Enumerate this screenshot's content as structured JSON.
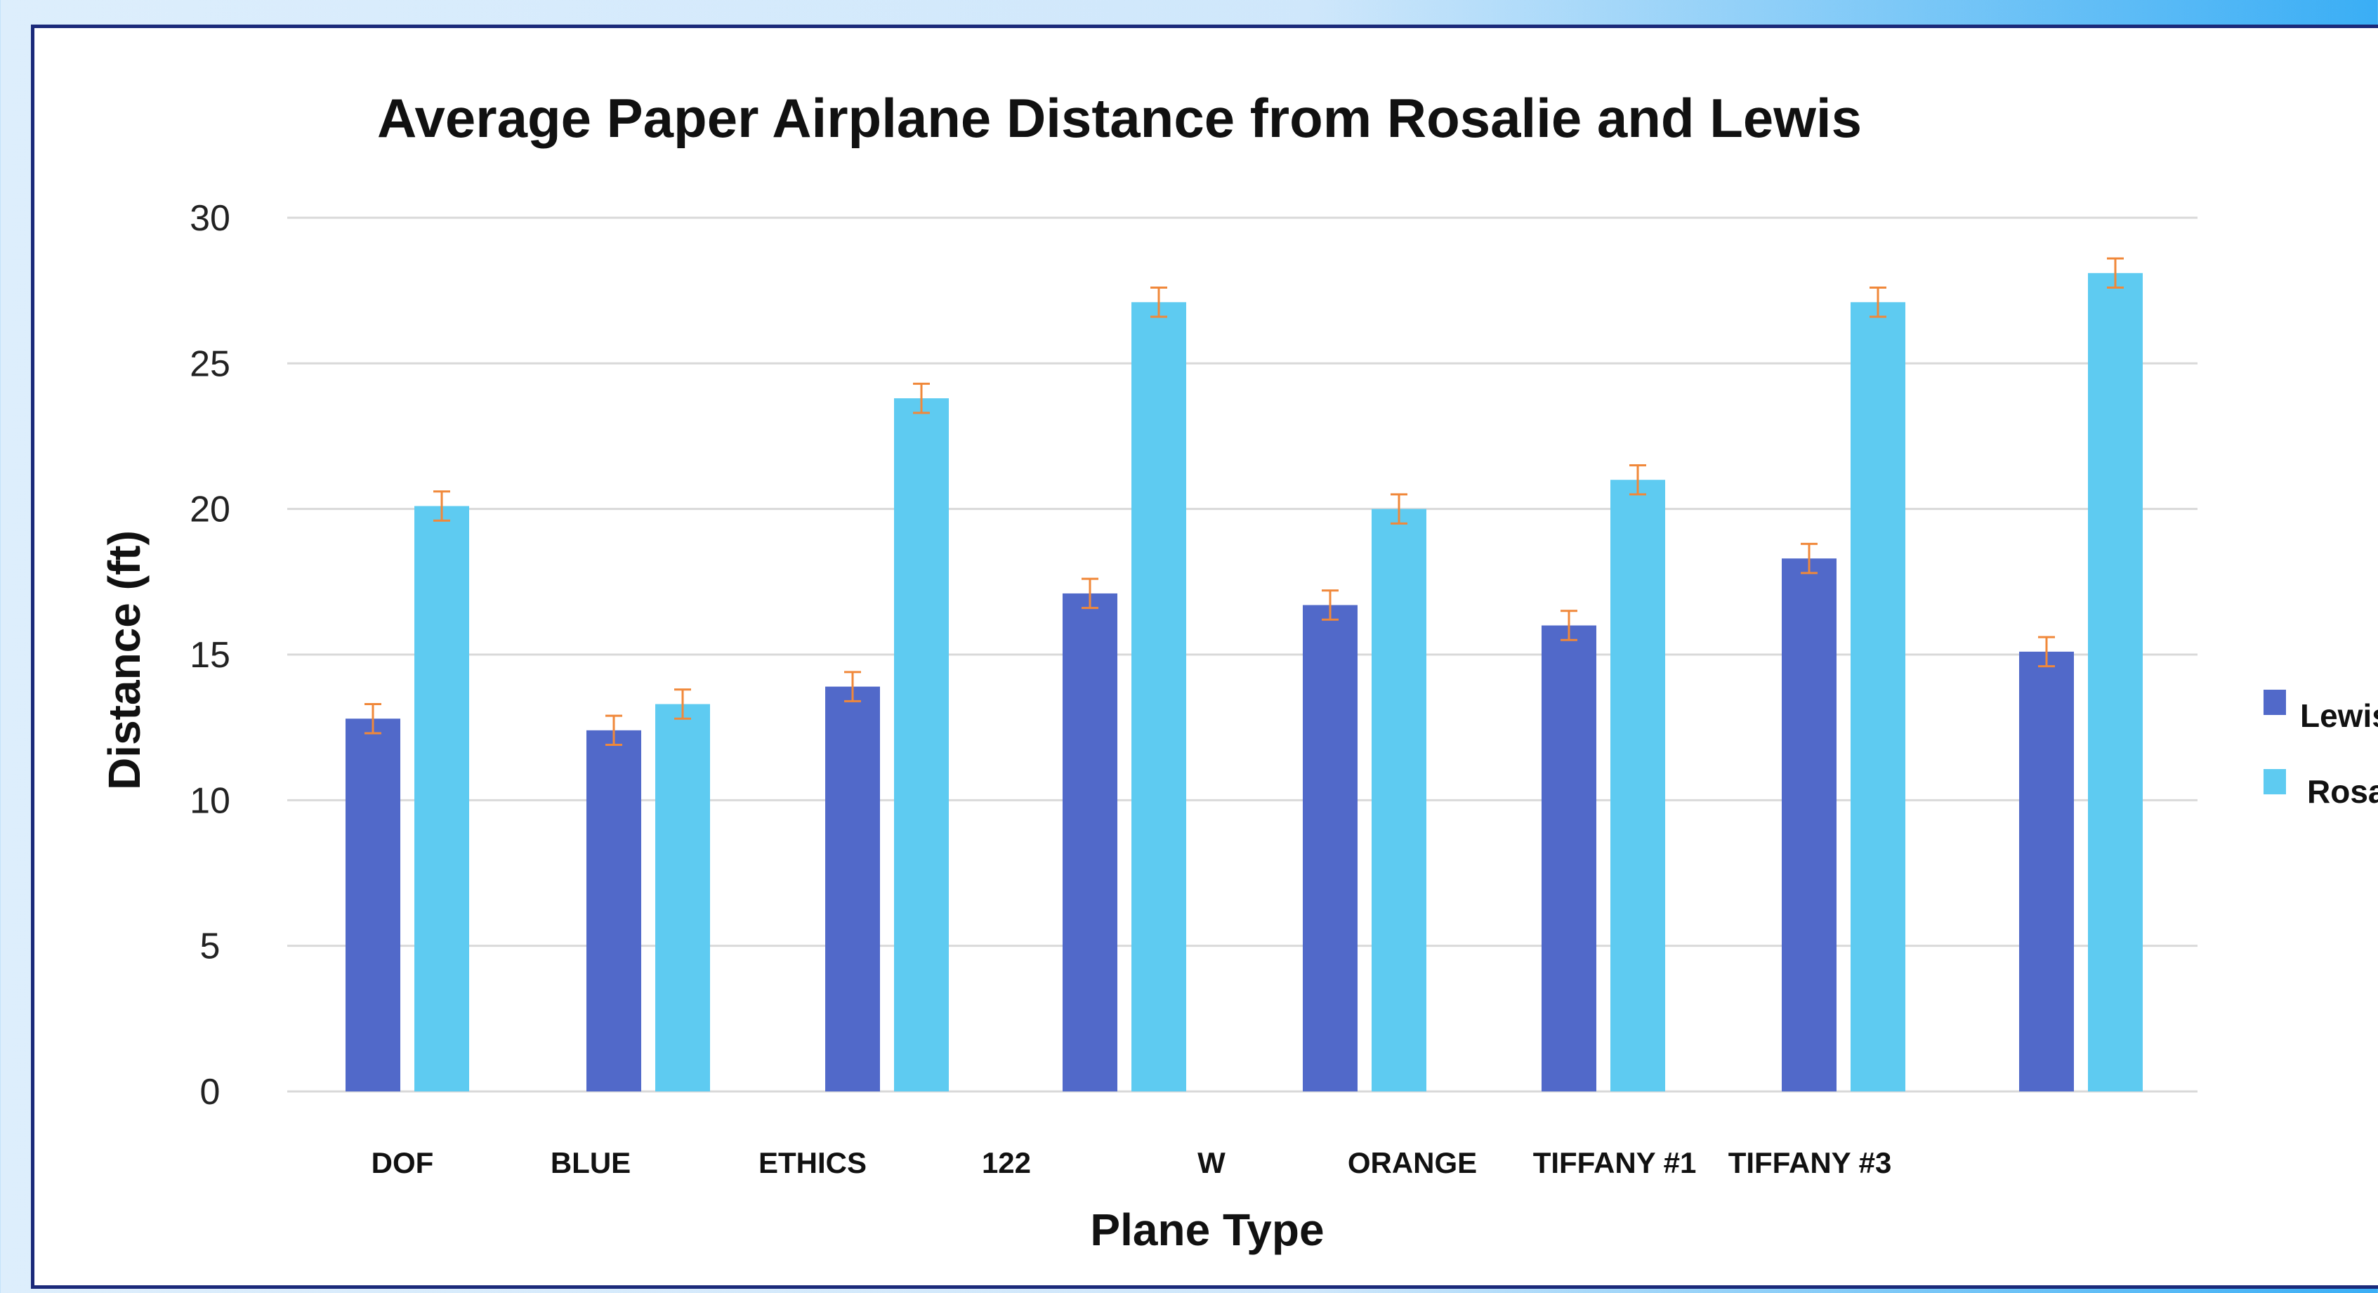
{
  "chart_data": {
    "type": "bar",
    "title": "Average Paper Airplane Distance from Rosalie and Lewis",
    "xlabel": "Plane Type",
    "ylabel": "Distance (ft)",
    "ylim": [
      0,
      30
    ],
    "yticks": [
      0,
      5,
      10,
      15,
      20,
      25,
      30
    ],
    "grid": true,
    "legend_position": "right",
    "categories": [
      "DOF",
      "BLUE",
      "ETHICS",
      "122",
      "W",
      "ORANGE",
      "TIFFANY #1",
      "TIFFANY #3"
    ],
    "series": [
      {
        "name": "Lewis",
        "color": "#5169c9",
        "values": [
          12.8,
          12.4,
          13.9,
          17.1,
          16.7,
          16.0,
          18.3,
          15.1
        ],
        "errors": [
          0.5,
          0.5,
          0.5,
          0.5,
          0.5,
          0.5,
          0.5,
          0.5
        ]
      },
      {
        "name": "Rosalie",
        "color": "#5ecbf1",
        "values": [
          20.1,
          13.3,
          23.8,
          27.1,
          20.0,
          21.0,
          27.1,
          28.1
        ],
        "errors": [
          0.5,
          0.5,
          0.5,
          0.5,
          0.5,
          0.5,
          0.5,
          0.5
        ]
      }
    ],
    "error_bar_color": "#f0883a"
  }
}
